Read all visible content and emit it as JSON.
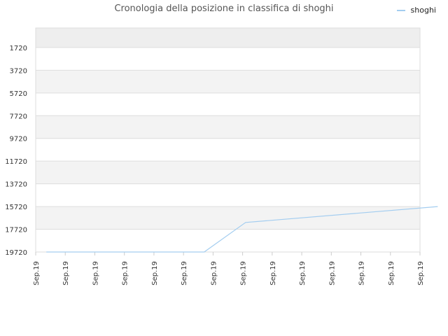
{
  "chart_data": {
    "type": "line",
    "title": "Cronologia della posizione in classifica di shoghi",
    "legend": {
      "position": "top-right"
    },
    "y_axis": {
      "reversed": true,
      "ylim": [
        19720,
        0
      ],
      "ticks": [
        1720,
        3720,
        5720,
        7720,
        9720,
        11720,
        13720,
        15720,
        17720,
        19720
      ],
      "tick_labels": [
        "1720",
        "3720",
        "5720",
        "7720",
        "9720",
        "11720",
        "13720",
        "15720",
        "17720",
        "19720"
      ]
    },
    "x_axis": {
      "tick_labels": [
        "Sep.19",
        "Sep.19",
        "Sep.19",
        "Sep.19",
        "Sep.19",
        "Sep.19",
        "Sep.19",
        "Sep.19",
        "Sep.19",
        "Sep.19",
        "Sep.19",
        "Sep.19",
        "Sep.19",
        "Sep.19"
      ]
    },
    "series": [
      {
        "name": "shoghi",
        "color": "#a3cdf0",
        "points": [
          {
            "x": 0.36,
            "y": 19720
          },
          {
            "x": 5.7,
            "y": 19720
          },
          {
            "x": 7.1,
            "y": 17120
          },
          {
            "x": 13.6,
            "y": 15720
          }
        ]
      }
    ],
    "band_colors": [
      "#eeeeee",
      "#ffffff",
      "#f3f3f3"
    ],
    "grid": true
  }
}
